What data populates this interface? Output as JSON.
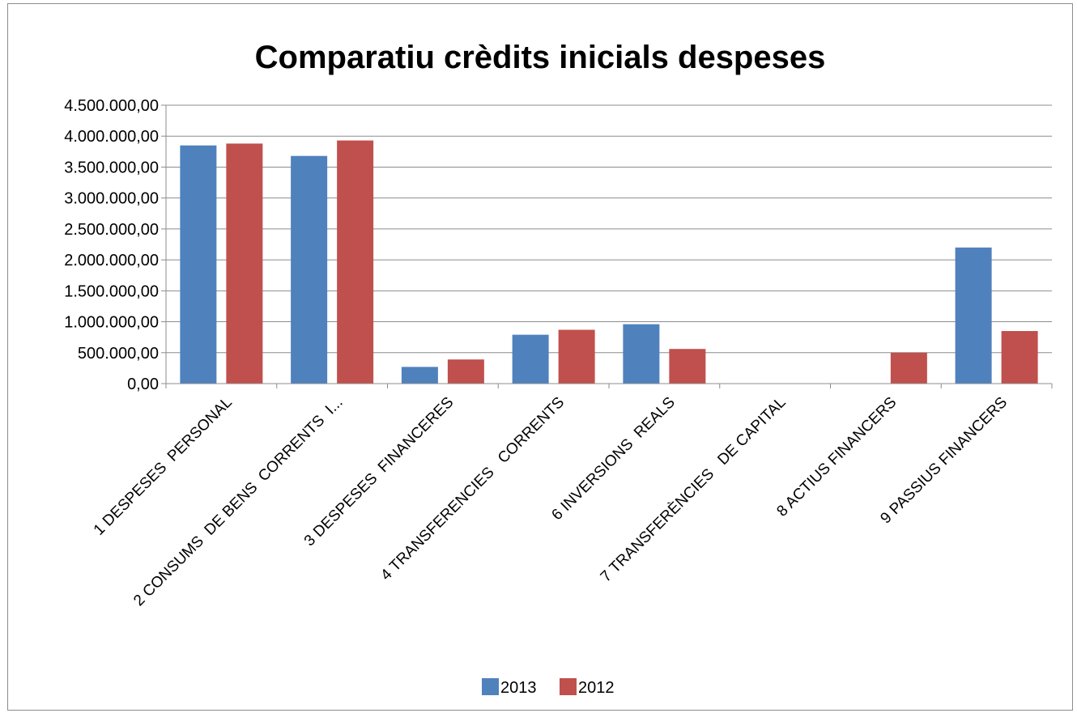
{
  "chart_data": {
    "type": "bar",
    "title": "Comparatiu crèdits inicials despeses",
    "xlabel": "",
    "ylabel": "",
    "ylim": [
      0,
      4500000
    ],
    "yticks": [
      "0,00",
      "500.000,00",
      "1.000.000,00",
      "1.500.000,00",
      "2.000.000,00",
      "2.500.000,00",
      "3.000.000,00",
      "3.500.000,00",
      "4.000.000,00",
      "4.500.000,00"
    ],
    "ytick_values": [
      0,
      500000,
      1000000,
      1500000,
      2000000,
      2500000,
      3000000,
      3500000,
      4000000,
      4500000
    ],
    "categories": [
      "1 DESPESES  PERSONAL",
      "2 CONSUMS  DE BENS  CORRENTS  I...",
      "3 DESPESES  FINANCERES",
      "4 TRANSFERENCIES   CORRENTS",
      "6 INVERSIONS  REALS",
      "7 TRANSFERÈNCIES   DE CAPITAL",
      "8 ACTIUS FINANCERS",
      "9 PASSIUS FINANCERS"
    ],
    "series": [
      {
        "name": "2013",
        "color": "#4f81bd",
        "values": [
          3850000,
          3680000,
          270000,
          790000,
          960000,
          0,
          0,
          2200000
        ]
      },
      {
        "name": "2012",
        "color": "#c0504d",
        "values": [
          3880000,
          3930000,
          390000,
          870000,
          560000,
          0,
          500000,
          850000
        ]
      }
    ],
    "grid": true,
    "legend_position": "bottom"
  }
}
